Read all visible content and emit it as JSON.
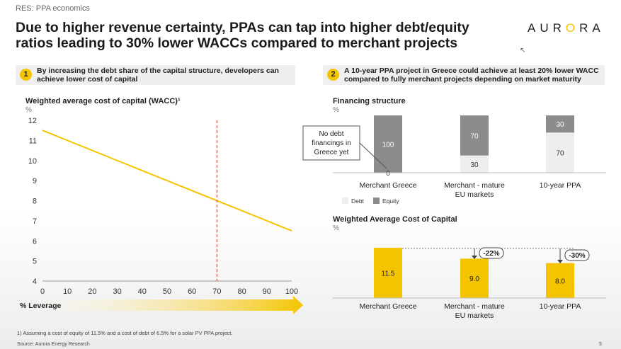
{
  "breadcrumb": "RES: PPA economics",
  "title_line1": "Due to higher revenue certainty, PPAs can tap into higher debt/equity",
  "title_line2": "ratios leading to 30% lower WACCs compared to merchant projects",
  "logo": {
    "left": "AUR",
    "o": "O",
    "right": "RA"
  },
  "panel1": {
    "number": "1",
    "text": "By increasing the debt share of the capital structure, developers can achieve lower cost of capital"
  },
  "panel2": {
    "number": "2",
    "text": "A 10-year PPA project in Greece could achieve at least 20% lower WACC compared to fully merchant projects depending on market maturity"
  },
  "wacc_chart": {
    "title": "Weighted average cost of capital (WACC)¹",
    "unit": "%",
    "xlabel": "% Leverage",
    "y_ticks": [
      "12",
      "11",
      "10",
      "9",
      "8",
      "7",
      "6",
      "5",
      "4"
    ],
    "x_ticks": [
      "0",
      "10",
      "20",
      "30",
      "40",
      "50",
      "60",
      "70",
      "80",
      "90",
      "100"
    ]
  },
  "financing": {
    "title": "Financing structure",
    "unit": "%",
    "callout": [
      "No debt",
      "financings in",
      "Greece yet"
    ],
    "legend_debt": "Debt",
    "legend_equity": "Equity"
  },
  "wacc_bars": {
    "title": "Weighted Average Cost of Capital",
    "unit": "%",
    "delta1": "-22%",
    "delta2": "-30%"
  },
  "colors": {
    "accent": "#f5c400",
    "equity": "#8c8c8c",
    "debt": "#eeeeee",
    "marker": "#c0392b"
  },
  "chart_data": [
    {
      "type": "line",
      "title": "Weighted average cost of capital (WACC)¹",
      "xlabel": "% Leverage",
      "ylabel": "%",
      "x": [
        0,
        100
      ],
      "series": [
        {
          "values": [
            11.5,
            6.5
          ]
        }
      ],
      "xlim": [
        0,
        100
      ],
      "ylim": [
        4,
        12
      ],
      "annotation": {
        "vertical_line_x": 70
      }
    },
    {
      "type": "bar",
      "stacked": true,
      "title": "Financing structure",
      "ylabel": "%",
      "categories": [
        "Merchant Greece",
        "Merchant - mature EU markets",
        "10-year PPA"
      ],
      "series": [
        {
          "name": "Debt",
          "values": [
            0,
            30,
            70
          ]
        },
        {
          "name": "Equity",
          "values": [
            100,
            70,
            30
          ]
        }
      ]
    },
    {
      "type": "bar",
      "title": "Weighted Average Cost of Capital",
      "ylabel": "%",
      "categories": [
        "Merchant Greece",
        "Merchant - mature EU markets",
        "10-year PPA"
      ],
      "values": [
        11.5,
        9.0,
        8.0
      ],
      "value_labels": [
        "11.5",
        "9.0",
        "8.0"
      ]
    }
  ],
  "footnote": "1) Assuming a cost of equity of 11.5% and a cost of debt of 6.5% for a solar PV PPA project.",
  "source": "Source: Aurora Energy Research",
  "page_number": "5"
}
